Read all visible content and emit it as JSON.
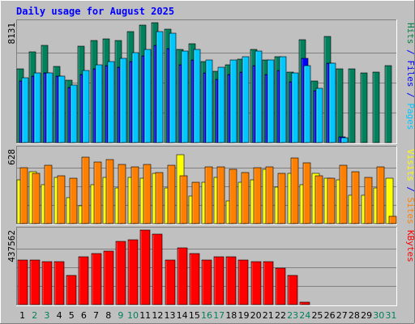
{
  "chart_data": {
    "type": "bar",
    "title": "Daily usage for August 2025",
    "categories": [
      "1",
      "2",
      "3",
      "4",
      "5",
      "6",
      "7",
      "8",
      "9",
      "10",
      "11",
      "12",
      "13",
      "14",
      "15",
      "16",
      "17",
      "18",
      "19",
      "20",
      "21",
      "22",
      "23",
      "24",
      "25",
      "26",
      "27",
      "28",
      "29",
      "30",
      "31"
    ],
    "weekend_days": [
      "2",
      "3",
      "9",
      "10",
      "16",
      "17",
      "23",
      "24",
      "30",
      "31"
    ],
    "panels": [
      {
        "id": "hits-files-pages",
        "ymax_label": "8131",
        "ymax": 8131,
        "side_labels": [
          {
            "text": "Pages",
            "color": "#00c8ff"
          },
          {
            "text": " / ",
            "color": "#0000ff"
          },
          {
            "text": "Files",
            "color": "#0000ff"
          },
          {
            "text": " / ",
            "color": "#0000ff"
          },
          {
            "text": "Hits",
            "color": "#008040"
          }
        ],
        "series": [
          {
            "name": "Hits",
            "color": "#00805c",
            "values": [
              5000,
              6150,
              6600,
              5150,
              4250,
              6550,
              6900,
              7050,
              6900,
              7500,
              7950,
              8131,
              7700,
              6300,
              6700,
              5500,
              4850,
              5250,
              5650,
              6300,
              5600,
              5850,
              4800,
              7000,
              4200,
              7200,
              5000,
              5000,
              4700,
              4800,
              5200
            ]
          },
          {
            "name": "Files",
            "color": "#0000ff",
            "values": [
              4200,
              4500,
              4700,
              4500,
              3750,
              4600,
              5000,
              5200,
              5100,
              5500,
              5900,
              6600,
              6400,
              5300,
              5600,
              4700,
              4300,
              4600,
              4800,
              5200,
              4600,
              4900,
              4100,
              5700,
              3500,
              5400,
              380,
              0,
              0,
              0,
              0
            ]
          },
          {
            "name": "Pages",
            "color": "#00c8ff",
            "values": [
              4400,
              4700,
              4700,
              4500,
              3900,
              4900,
              5300,
              5500,
              5700,
              6100,
              6300,
              7500,
              7400,
              6200,
              6300,
              5600,
              5100,
              5600,
              5800,
              6200,
              5600,
              5800,
              4700,
              5200,
              3700,
              5400,
              330,
              0,
              0,
              0,
              0
            ]
          }
        ]
      },
      {
        "id": "visits-sites",
        "ymax_label": "628",
        "ymax": 628,
        "side_labels": [
          {
            "text": "Sites",
            "color": "#ff8000"
          },
          {
            "text": " / ",
            "color": "#0000ff"
          },
          {
            "text": "Visits",
            "color": "#ffff00"
          }
        ],
        "series": [
          {
            "name": "Visits",
            "color": "#ffff00",
            "values": [
              370,
              440,
              330,
              390,
              220,
              150,
              330,
              390,
              300,
              390,
              380,
              420,
              300,
              580,
              230,
              350,
              390,
              190,
              350,
              370,
              460,
              310,
              420,
              330,
              420,
              380,
              370,
              240,
              240,
              300,
              380
            ]
          },
          {
            "name": "Sites",
            "color": "#ff8000",
            "values": [
              470,
              420,
              490,
              400,
              380,
              560,
              520,
              540,
              500,
              480,
              500,
              430,
              490,
              400,
              350,
              480,
              480,
              460,
              430,
              470,
              480,
              420,
              550,
              510,
              400,
              380,
              490,
              440,
              390,
              480,
              60
            ]
          }
        ]
      },
      {
        "id": "kbytes",
        "ymax_label": "437562",
        "ymax": 437562,
        "side_labels": [
          {
            "text": "KBytes",
            "color": "#ff0000"
          }
        ],
        "series": [
          {
            "name": "KBytes",
            "color": "#ff0000",
            "values": [
              262000,
              262000,
              252000,
              252000,
              172000,
              282000,
              302000,
              312000,
              372000,
              382000,
              437562,
              412000,
              262000,
              332000,
              302000,
              262000,
              282000,
              282000,
              262000,
              252000,
              252000,
              212000,
              172000,
              16000,
              0,
              0,
              0,
              0,
              0,
              0,
              0
            ]
          }
        ]
      }
    ]
  }
}
